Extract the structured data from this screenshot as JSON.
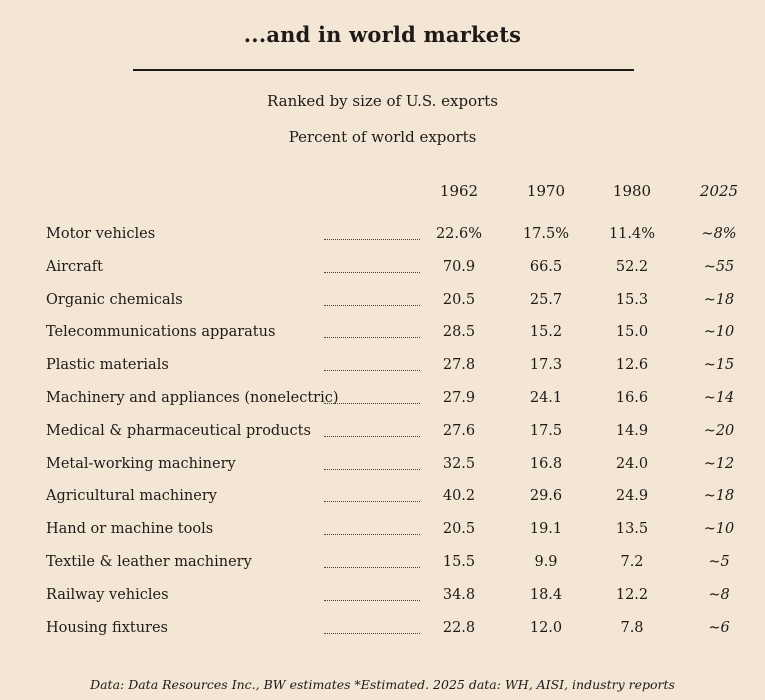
{
  "title": "...and in world markets",
  "subtitle": "Ranked by size of U.S. exports",
  "subtitle2": "Percent of world exports",
  "footnote": "Data: Data Resources Inc., BW estimates  *Estimated. 2025 data: WH, AISI, industry reports",
  "chart_data": {
    "type": "table",
    "title": "...and in world markets",
    "columns": [
      "1962",
      "1970",
      "1980",
      "2025"
    ],
    "rows": [
      {
        "label": "Motor vehicles",
        "values": [
          "22.6%",
          "17.5%",
          "11.4%",
          "~8%"
        ]
      },
      {
        "label": "Aircraft",
        "values": [
          "70.9",
          "66.5",
          "52.2",
          "~55"
        ]
      },
      {
        "label": "Organic chemicals",
        "values": [
          "20.5",
          "25.7",
          "15.3",
          "~18"
        ]
      },
      {
        "label": "Telecommunications apparatus",
        "values": [
          "28.5",
          "15.2",
          "15.0",
          "~10"
        ]
      },
      {
        "label": "Plastic materials",
        "values": [
          "27.8",
          "17.3",
          "12.6",
          "~15"
        ]
      },
      {
        "label": "Machinery and appliances (nonelectric)",
        "values": [
          "27.9",
          "24.1",
          "16.6",
          "~14"
        ]
      },
      {
        "label": "Medical & pharmaceutical products",
        "values": [
          "27.6",
          "17.5",
          "14.9",
          "~20"
        ]
      },
      {
        "label": "Metal-working machinery",
        "values": [
          "32.5",
          "16.8",
          "24.0",
          "~12"
        ]
      },
      {
        "label": "Agricultural machinery",
        "values": [
          "40.2",
          "29.6",
          "24.9",
          "~18"
        ]
      },
      {
        "label": "Hand or machine tools",
        "values": [
          "20.5",
          "19.1",
          "13.5",
          "~10"
        ]
      },
      {
        "label": "Textile & leather machinery",
        "values": [
          "15.5",
          "9.9",
          "7.2",
          "~5"
        ]
      },
      {
        "label": "Railway vehicles",
        "values": [
          "34.8",
          "18.4",
          "12.2",
          "~8"
        ]
      },
      {
        "label": "Housing fixtures",
        "values": [
          "22.8",
          "12.0",
          "7.8",
          "~6"
        ]
      }
    ]
  }
}
